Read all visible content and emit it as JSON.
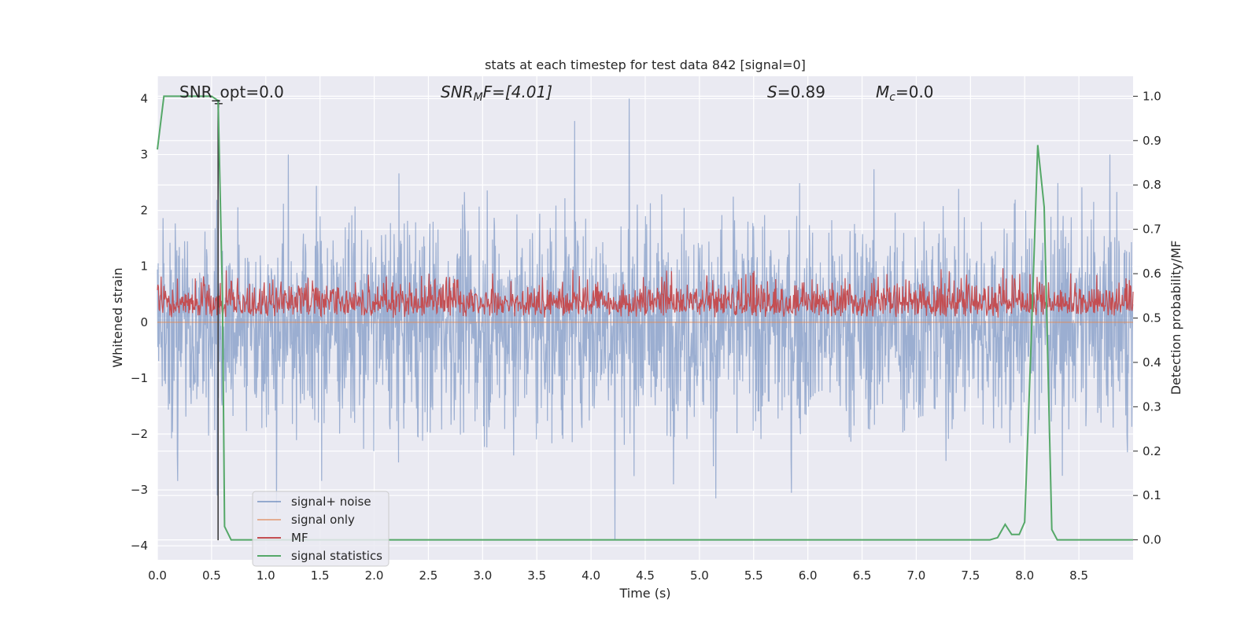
{
  "chart_data": {
    "type": "line",
    "title": "stats at each timestep for test data 842 [signal=0]",
    "xlabel": "Time (s)",
    "ylabel_left": "Whitened strain",
    "ylabel_right": "Detection probability/MF",
    "xlim": [
      0.0,
      9.0
    ],
    "ylim_left": [
      -4.25,
      4.4
    ],
    "ylim_right": [
      -0.045,
      1.045
    ],
    "x_ticks": [
      "0.0",
      "0.5",
      "1.0",
      "1.5",
      "2.0",
      "2.5",
      "3.0",
      "3.5",
      "4.0",
      "4.5",
      "5.0",
      "5.5",
      "6.0",
      "6.5",
      "7.0",
      "7.5",
      "8.0",
      "8.5"
    ],
    "y_ticks_left": [
      "−4",
      "−3",
      "−2",
      "−1",
      "0",
      "1",
      "2",
      "3",
      "4"
    ],
    "y_ticks_right": [
      "0.0",
      "0.1",
      "0.2",
      "0.3",
      "0.4",
      "0.5",
      "0.6",
      "0.7",
      "0.8",
      "0.9",
      "1.0"
    ],
    "grid": true,
    "legend_position": "lower-left",
    "annotations": {
      "snr_opt": "SNR_opt=0.0",
      "snr_mf_base": "SNR",
      "snr_mf_sub": "M",
      "snr_mf_tail": "F=[4.01]",
      "s_base": "S",
      "s_tail": "=0.89",
      "mc_base": "M",
      "mc_sub": "c",
      "mc_tail": "=0.0"
    },
    "series": [
      {
        "name": "signal+ noise",
        "axis": "left",
        "color": "#4c72b0",
        "kind": "noise",
        "sample_rate_hz": 1000,
        "description_envelope": {
          "typical_peak": 2.0,
          "max": 4.0,
          "min": -3.9
        },
        "spikes": [
          [
            3.85,
            3.6
          ],
          [
            4.35,
            4.0
          ],
          [
            4.22,
            -3.9
          ],
          [
            5.15,
            -3.15
          ],
          [
            1.1,
            -3.4
          ],
          [
            0.55,
            -3.1
          ],
          [
            5.85,
            -3.05
          ]
        ]
      },
      {
        "name": "signal only",
        "axis": "left",
        "color": "#dd8452",
        "values_description": "zero everywhere",
        "x": [
          0.0,
          9.0
        ],
        "y": [
          0.0,
          0.0
        ]
      },
      {
        "name": "MF",
        "axis": "right",
        "color": "#c44e52",
        "kind": "noise",
        "baseline": 0.5,
        "range": [
          0.5,
          0.62
        ]
      },
      {
        "name": "signal statistics",
        "axis": "right",
        "color": "#55a868",
        "x": [
          0.0,
          0.06,
          0.1,
          0.5,
          0.56,
          0.6,
          0.62,
          0.68,
          1.0,
          7.0,
          7.68,
          7.75,
          7.82,
          7.88,
          7.95,
          8.0,
          8.06,
          8.12,
          8.18,
          8.25,
          8.3,
          9.0
        ],
        "y": [
          0.88,
          1.0,
          1.0,
          1.0,
          0.99,
          0.55,
          0.03,
          0.0,
          0.0,
          0.0,
          0.0,
          0.005,
          0.035,
          0.012,
          0.012,
          0.04,
          0.45,
          0.89,
          0.75,
          0.023,
          0.0,
          0.0
        ]
      }
    ],
    "marker": {
      "x": 0.56,
      "y_top": 0.99,
      "y_bottom": -3.9,
      "label": "+"
    }
  }
}
